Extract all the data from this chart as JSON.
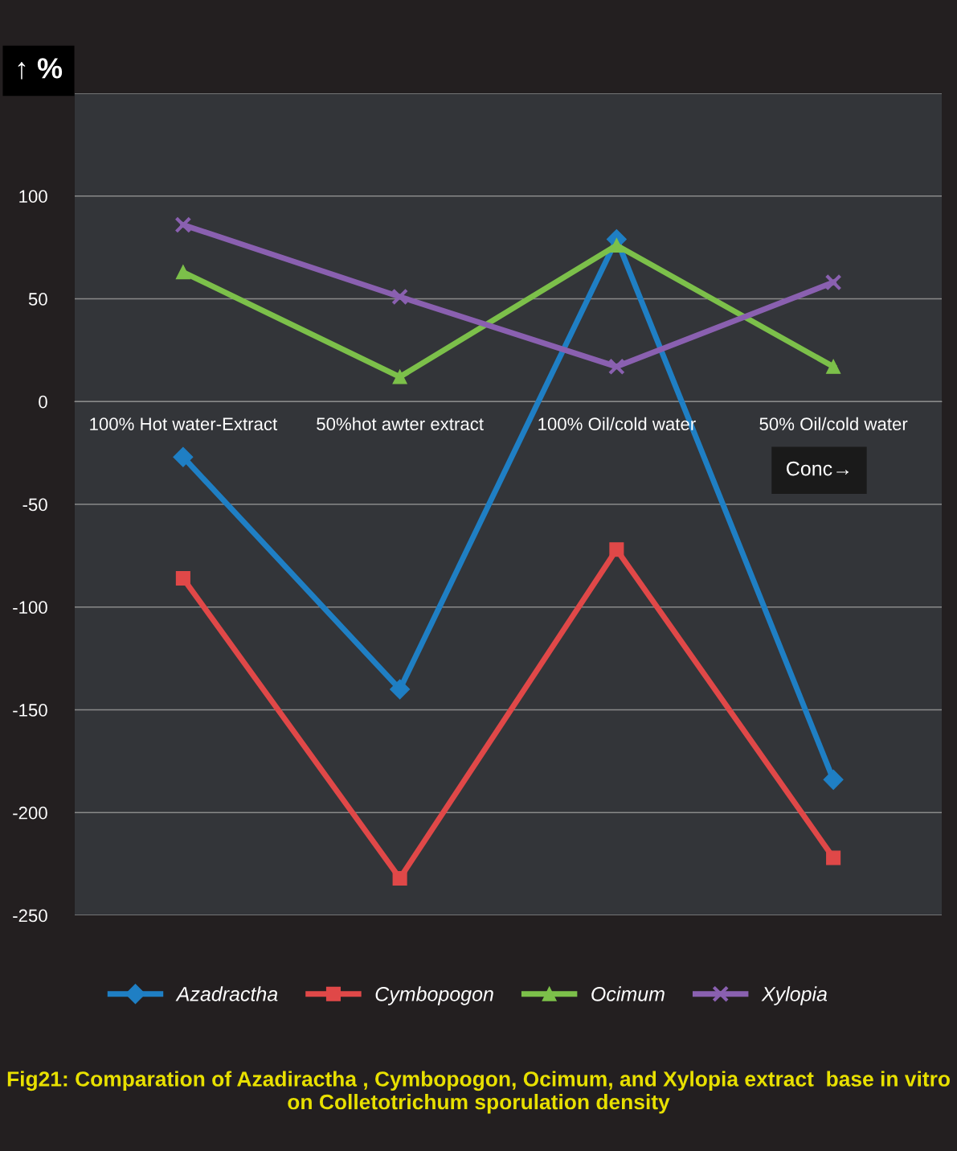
{
  "chart_data": {
    "type": "line",
    "title": "Fig21: Comparation of Azadiractha , Cymbopogon, Ocimum, and Xylopia extract  base in vitro on Colletotrichum sporulation density",
    "ylabel": "↑ %",
    "xlabel": "Conc→",
    "categories": [
      "100% Hot water-Extract",
      "50%hot awter extract",
      "100% Oil/cold water",
      "50% Oil/cold water"
    ],
    "series": [
      {
        "name": "Azadractha",
        "color": "#1f7fc4",
        "marker": "diamond",
        "values": [
          -27,
          -140,
          79,
          -184
        ]
      },
      {
        "name": "Cymbopogon",
        "color": "#e04848",
        "marker": "square",
        "values": [
          -86,
          -232,
          -72,
          -222
        ]
      },
      {
        "name": "Ocimum",
        "color": "#7cc04a",
        "marker": "triangle",
        "values": [
          63,
          12,
          76,
          17
        ]
      },
      {
        "name": "Xylopia",
        "color": "#8a60b0",
        "marker": "cross",
        "values": [
          86,
          51,
          17,
          58
        ]
      }
    ],
    "ylim": [
      -250,
      150
    ],
    "yticks": [
      -250,
      -200,
      -150,
      -100,
      -50,
      0,
      50,
      100,
      {
        "value": 150,
        "label": null
      }
    ],
    "grid": "y",
    "legend": "bottom",
    "line_style": "solid"
  }
}
